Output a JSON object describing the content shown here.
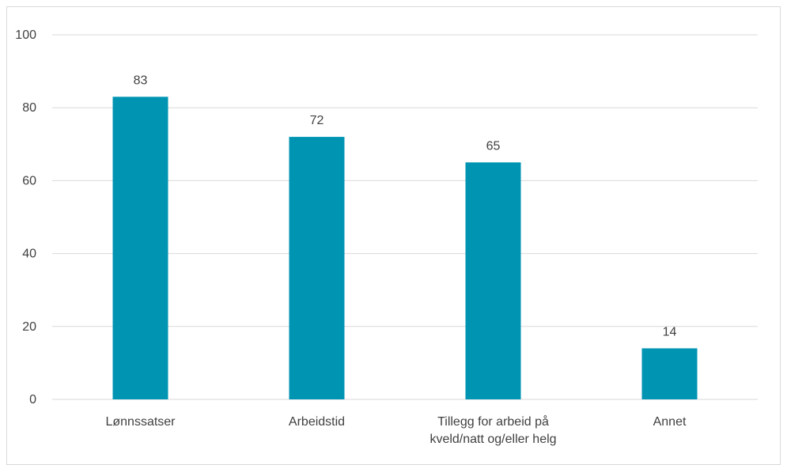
{
  "chart_data": {
    "type": "bar",
    "title": "",
    "xlabel": "",
    "ylabel": "",
    "categories": [
      [
        "Lønnssatser"
      ],
      [
        "Arbeidstid"
      ],
      [
        "Tillegg for arbeid på",
        "kveld/natt og/eller helg"
      ],
      [
        "Annet"
      ]
    ],
    "values": [
      83,
      72,
      65,
      14
    ],
    "data_labels": [
      "83",
      "72",
      "65",
      "14"
    ],
    "ylim": [
      0,
      100
    ],
    "yticks": [
      0,
      20,
      40,
      60,
      80,
      100
    ],
    "ytick_labels": [
      "0",
      "20",
      "40",
      "60",
      "80",
      "100"
    ],
    "grid": true,
    "legend": "none",
    "colors": {
      "bar": "#0094b3",
      "grid": "#d9d9d9",
      "text": "#404040"
    }
  }
}
